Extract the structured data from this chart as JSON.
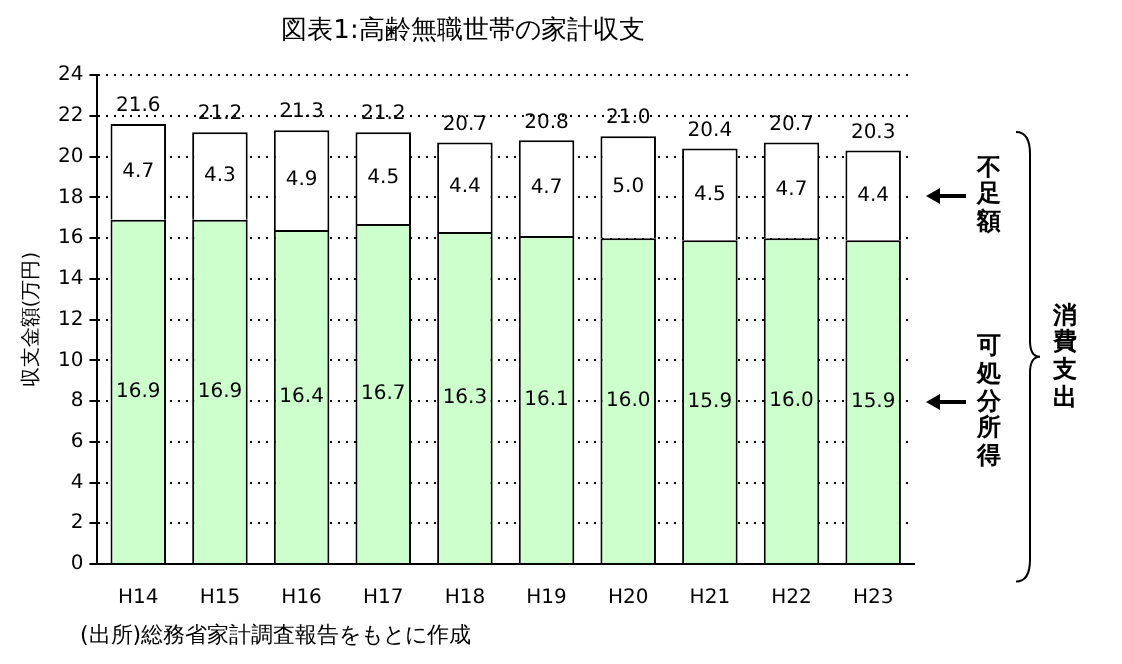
{
  "chart_data": {
    "type": "bar",
    "title": "図表1:高齢無職世帯の家計収支",
    "ylabel": "収支金額(万円)",
    "categories": [
      "H14",
      "H15",
      "H16",
      "H17",
      "H18",
      "H19",
      "H20",
      "H21",
      "H22",
      "H23"
    ],
    "series": [
      {
        "name": "可処分所得",
        "color": "#ccffcc",
        "values": [
          16.9,
          16.9,
          16.4,
          16.7,
          16.3,
          16.1,
          16.0,
          15.9,
          16.0,
          15.9
        ],
        "value_labels": [
          "16.9",
          "16.9",
          "16.4",
          "16.7",
          "16.3",
          "16.1",
          "16.0",
          "15.9",
          "16.0",
          "15.9"
        ]
      },
      {
        "name": "不足額",
        "color": "#ffffff",
        "values": [
          4.7,
          4.3,
          4.9,
          4.5,
          4.4,
          4.7,
          5.0,
          4.5,
          4.7,
          4.4
        ],
        "value_labels": [
          "4.7",
          "4.3",
          "4.9",
          "4.5",
          "4.4",
          "4.7",
          "5.0",
          "4.5",
          "4.7",
          "4.4"
        ]
      }
    ],
    "stacked": true,
    "totals": [
      "21.6",
      "21.2",
      "21.3",
      "21.2",
      "20.7",
      "20.8",
      "21.0",
      "20.4",
      "20.7",
      "20.3"
    ],
    "ylim": [
      0,
      24
    ],
    "yticks": [
      0,
      2,
      4,
      6,
      8,
      10,
      12,
      14,
      16,
      18,
      20,
      22,
      24
    ],
    "grid": "y",
    "annotations": [
      "消費支出",
      "(出所)総務省家計調査報告をもとに作成"
    ]
  }
}
